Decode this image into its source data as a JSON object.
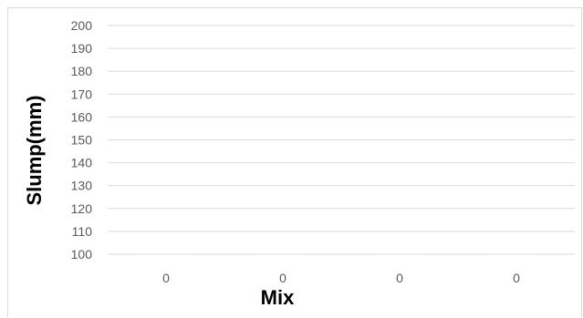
{
  "chart_data": {
    "type": "bar",
    "title": "",
    "xlabel": "Mix",
    "ylabel": "Slump(mm)",
    "categories": [
      "0",
      "0",
      "0",
      "0"
    ],
    "values": [
      100,
      100,
      100,
      100
    ],
    "ylim": [
      100,
      200
    ],
    "yticks": [
      100,
      110,
      120,
      130,
      140,
      150,
      160,
      170,
      180,
      190,
      200
    ],
    "grid": true,
    "legend": "none",
    "colors": {
      "grid": "#d9d9d9",
      "tick_text": "#595959",
      "axis_title": "#000000",
      "frame": "#d9d9d9"
    }
  }
}
